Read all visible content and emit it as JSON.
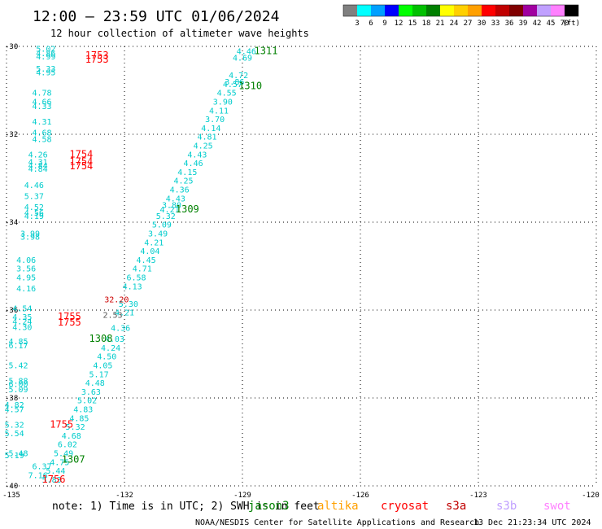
{
  "title": "12:00 — 23:59 UTC 01/06/2024",
  "subtitle": "12 hour collection of altimeter wave heights",
  "note_text": "note:  1) Time is in UTC; 2) SWH is in feet",
  "credit_left": "NOAA/NESDIS Center for Satellite Applications and Research",
  "credit_right": "13 Dec 21:23:34 UTC 2024",
  "colorbar": {
    "labels": [
      "3",
      "6",
      "9",
      "12",
      "15",
      "18",
      "21",
      "24",
      "27",
      "30",
      "33",
      "36",
      "39",
      "42",
      "45",
      "70"
    ],
    "unit": "(ft)",
    "colors": [
      "#808080",
      "#00ffff",
      "#00a0ff",
      "#0000ff",
      "#00ff00",
      "#00c000",
      "#008000",
      "#ffff00",
      "#ffd000",
      "#ffa000",
      "#ff0000",
      "#c00000",
      "#800000",
      "#a000a0",
      "#c0a0ff",
      "#ff80ff",
      "#000000"
    ]
  },
  "satellites": [
    {
      "name": "jason3",
      "color": "#008000"
    },
    {
      "name": "altika",
      "color": "#ffa000"
    },
    {
      "name": "cryosat",
      "color": "#ff0000"
    },
    {
      "name": "s3a",
      "color": "#c00000"
    },
    {
      "name": "s3b",
      "color": "#c0a0ff"
    },
    {
      "name": "swot",
      "color": "#ff80ff"
    }
  ],
  "chart_data": {
    "type": "scatter",
    "xlim": [
      -135,
      -120
    ],
    "ylim": [
      -40,
      -30
    ],
    "xticks": [
      -135,
      -132,
      -129,
      -126,
      -123,
      -120
    ],
    "yticks": [
      -30,
      -32,
      -34,
      -36,
      -38,
      -40
    ],
    "grid": true,
    "x_tick_labels": [
      "-135",
      "-132",
      "-129",
      "-126",
      "-123",
      "-120"
    ],
    "y_tick_labels": [
      "-30",
      "-32",
      "-34",
      "-36",
      "-38",
      "-40"
    ],
    "pass_labels": [
      {
        "text": "1311",
        "lon": -128.4,
        "lat": -30.1,
        "color": "#008000"
      },
      {
        "text": "1310",
        "lon": -128.8,
        "lat": -30.9,
        "color": "#008000"
      },
      {
        "text": "1309",
        "lon": -130.4,
        "lat": -33.7,
        "color": "#008000"
      },
      {
        "text": "1308",
        "lon": -132.6,
        "lat": -36.65,
        "color": "#008000"
      },
      {
        "text": "1307",
        "lon": -133.3,
        "lat": -39.4,
        "color": "#008000"
      },
      {
        "text": "1753",
        "lon": -132.7,
        "lat": -30.2,
        "color": "#ff0000"
      },
      {
        "text": "1753",
        "lon": -132.7,
        "lat": -30.3,
        "color": "#ff0000"
      },
      {
        "text": "1754",
        "lon": -133.1,
        "lat": -32.45,
        "color": "#ff0000"
      },
      {
        "text": "1754",
        "lon": -133.1,
        "lat": -32.62,
        "color": "#ff0000"
      },
      {
        "text": "1754",
        "lon": -133.1,
        "lat": -32.72,
        "color": "#ff0000"
      },
      {
        "text": "1755",
        "lon": -133.4,
        "lat": -36.15,
        "color": "#ff0000"
      },
      {
        "text": "1755",
        "lon": -133.4,
        "lat": -36.28,
        "color": "#ff0000"
      },
      {
        "text": "1755",
        "lon": -133.6,
        "lat": -38.6,
        "color": "#ff0000"
      },
      {
        "text": "1756",
        "lon": -133.8,
        "lat": -39.85,
        "color": "#ff0000"
      }
    ],
    "series": [
      {
        "name": "jason3",
        "color": "#00cccc",
        "points": [
          {
            "lon": -128.9,
            "lat": -30.1,
            "v": "4.46"
          },
          {
            "lon": -129.0,
            "lat": -30.25,
            "v": "4.69"
          },
          {
            "lon": -129.1,
            "lat": -30.65,
            "v": "4.72"
          },
          {
            "lon": -129.2,
            "lat": -30.8,
            "v": "3.86"
          },
          {
            "lon": -129.25,
            "lat": -30.85,
            "v": "4.57"
          },
          {
            "lon": -129.4,
            "lat": -31.05,
            "v": "4.55"
          },
          {
            "lon": -129.5,
            "lat": -31.25,
            "v": "3.90"
          },
          {
            "lon": -129.6,
            "lat": -31.45,
            "v": "4.11"
          },
          {
            "lon": -129.7,
            "lat": -31.65,
            "v": "3.70"
          },
          {
            "lon": -129.8,
            "lat": -31.85,
            "v": "4.14"
          },
          {
            "lon": -129.9,
            "lat": -32.05,
            "v": "4.81"
          },
          {
            "lon": -130.0,
            "lat": -32.25,
            "v": "4.25"
          },
          {
            "lon": -130.15,
            "lat": -32.45,
            "v": "4.43"
          },
          {
            "lon": -130.25,
            "lat": -32.65,
            "v": "4.46"
          },
          {
            "lon": -130.4,
            "lat": -32.85,
            "v": "4.15"
          },
          {
            "lon": -130.5,
            "lat": -33.05,
            "v": "4.25"
          },
          {
            "lon": -130.6,
            "lat": -33.25,
            "v": "4.36"
          },
          {
            "lon": -130.7,
            "lat": -33.45,
            "v": "4.43"
          },
          {
            "lon": -130.8,
            "lat": -33.6,
            "v": "3.80"
          },
          {
            "lon": -130.85,
            "lat": -33.7,
            "v": "4.21"
          },
          {
            "lon": -130.95,
            "lat": -33.85,
            "v": "5.32"
          },
          {
            "lon": -131.05,
            "lat": -34.05,
            "v": "5.09"
          },
          {
            "lon": -131.15,
            "lat": -34.25,
            "v": "3.49"
          },
          {
            "lon": -131.25,
            "lat": -34.45,
            "v": "4.21"
          },
          {
            "lon": -131.35,
            "lat": -34.65,
            "v": "4.04"
          },
          {
            "lon": -131.45,
            "lat": -34.85,
            "v": "4.45"
          },
          {
            "lon": -131.55,
            "lat": -35.05,
            "v": "4.71"
          },
          {
            "lon": -131.7,
            "lat": -35.25,
            "v": "6.58"
          },
          {
            "lon": -131.8,
            "lat": -35.45,
            "v": "4.13"
          },
          {
            "lon": -131.9,
            "lat": -35.85,
            "v": "5.30"
          },
          {
            "lon": -132.0,
            "lat": -36.05,
            "v": "4.21"
          },
          {
            "lon": -132.1,
            "lat": -36.4,
            "v": "4.36"
          },
          {
            "lon": -132.25,
            "lat": -36.65,
            "v": "4.03"
          },
          {
            "lon": -132.35,
            "lat": -36.85,
            "v": "4.24"
          },
          {
            "lon": -132.45,
            "lat": -37.05,
            "v": "4.50"
          },
          {
            "lon": -132.55,
            "lat": -37.25,
            "v": "4.05"
          },
          {
            "lon": -132.65,
            "lat": -37.45,
            "v": "5.17"
          },
          {
            "lon": -132.75,
            "lat": -37.65,
            "v": "4.48"
          },
          {
            "lon": -132.85,
            "lat": -37.85,
            "v": "3.63"
          },
          {
            "lon": -132.95,
            "lat": -38.05,
            "v": "5.02"
          },
          {
            "lon": -133.05,
            "lat": -38.25,
            "v": "4.83"
          },
          {
            "lon": -133.15,
            "lat": -38.45,
            "v": "4.85"
          },
          {
            "lon": -133.25,
            "lat": -38.65,
            "v": "5.32"
          },
          {
            "lon": -133.35,
            "lat": -38.85,
            "v": "4.68"
          },
          {
            "lon": -133.45,
            "lat": -39.05,
            "v": "6.02"
          },
          {
            "lon": -133.55,
            "lat": -39.25,
            "v": "5.49"
          },
          {
            "lon": -133.65,
            "lat": -39.45,
            "v": "4.75"
          },
          {
            "lon": -133.75,
            "lat": -39.65,
            "v": "5.44"
          },
          {
            "lon": -133.85,
            "lat": -39.85,
            "v": "5.83"
          },
          {
            "lon": -134.1,
            "lat": -39.55,
            "v": "6.37"
          },
          {
            "lon": -134.2,
            "lat": -39.75,
            "v": "7.16"
          }
        ]
      },
      {
        "name": "cryosat",
        "color": "#00cccc",
        "points": [
          {
            "lon": -134.0,
            "lat": -30.05,
            "v": "5.02"
          },
          {
            "lon": -134.0,
            "lat": -30.15,
            "v": "4.86"
          },
          {
            "lon": -134.0,
            "lat": -30.22,
            "v": "4.99"
          },
          {
            "lon": -134.0,
            "lat": -30.5,
            "v": "5.33"
          },
          {
            "lon": -134.0,
            "lat": -30.58,
            "v": "4.95"
          },
          {
            "lon": -134.1,
            "lat": -31.05,
            "v": "4.78"
          },
          {
            "lon": -134.1,
            "lat": -31.25,
            "v": "4.66"
          },
          {
            "lon": -134.1,
            "lat": -31.35,
            "v": "4.33"
          },
          {
            "lon": -134.1,
            "lat": -31.7,
            "v": "4.31"
          },
          {
            "lon": -134.1,
            "lat": -31.95,
            "v": "4.68"
          },
          {
            "lon": -134.1,
            "lat": -32.1,
            "v": "4.58"
          },
          {
            "lon": -134.2,
            "lat": -32.45,
            "v": "4.26"
          },
          {
            "lon": -134.2,
            "lat": -32.62,
            "v": "4.31"
          },
          {
            "lon": -134.2,
            "lat": -32.7,
            "v": "4.84"
          },
          {
            "lon": -134.2,
            "lat": -32.78,
            "v": "4.84"
          },
          {
            "lon": -134.3,
            "lat": -33.15,
            "v": "4.46"
          },
          {
            "lon": -134.3,
            "lat": -33.4,
            "v": "5.37"
          },
          {
            "lon": -134.3,
            "lat": -33.65,
            "v": "4.52"
          },
          {
            "lon": -134.3,
            "lat": -33.78,
            "v": "4.56"
          },
          {
            "lon": -134.3,
            "lat": -33.85,
            "v": "4.19"
          },
          {
            "lon": -134.4,
            "lat": -34.25,
            "v": "3.99"
          },
          {
            "lon": -134.4,
            "lat": -34.32,
            "v": "3.98"
          },
          {
            "lon": -134.5,
            "lat": -34.85,
            "v": "4.06"
          },
          {
            "lon": -134.5,
            "lat": -35.05,
            "v": "3.56"
          },
          {
            "lon": -134.5,
            "lat": -35.25,
            "v": "4.95"
          },
          {
            "lon": -134.5,
            "lat": -35.5,
            "v": "4.16"
          },
          {
            "lon": -134.6,
            "lat": -35.95,
            "v": "4.54"
          },
          {
            "lon": -134.6,
            "lat": -36.15,
            "v": "4.35"
          },
          {
            "lon": -134.6,
            "lat": -36.25,
            "v": "4.24"
          },
          {
            "lon": -134.6,
            "lat": -36.38,
            "v": "4.30"
          },
          {
            "lon": -134.7,
            "lat": -36.7,
            "v": "4.85"
          },
          {
            "lon": -134.7,
            "lat": -36.8,
            "v": "6.17"
          },
          {
            "lon": -134.7,
            "lat": -37.25,
            "v": "5.42"
          },
          {
            "lon": -134.7,
            "lat": -37.6,
            "v": "5.88"
          },
          {
            "lon": -134.7,
            "lat": -37.68,
            "v": "6.00"
          },
          {
            "lon": -134.7,
            "lat": -37.8,
            "v": "5.09"
          },
          {
            "lon": -134.8,
            "lat": -38.15,
            "v": "4.82"
          },
          {
            "lon": -134.8,
            "lat": -38.25,
            "v": "4.57"
          },
          {
            "lon": -134.8,
            "lat": -38.6,
            "v": "5.32"
          },
          {
            "lon": -134.8,
            "lat": -38.8,
            "v": "5.54"
          },
          {
            "lon": -134.7,
            "lat": -39.25,
            "v": "5.48"
          },
          {
            "lon": -134.8,
            "lat": -39.3,
            "v": "5.19"
          }
        ]
      },
      {
        "name": "altika",
        "color": "#cc0000",
        "points": [
          {
            "lon": -132.2,
            "lat": -35.75,
            "v": "32.20"
          }
        ]
      },
      {
        "name": "s3a",
        "color": "#555555",
        "points": [
          {
            "lon": -132.3,
            "lat": -36.1,
            "v": "2.53"
          }
        ]
      }
    ]
  }
}
